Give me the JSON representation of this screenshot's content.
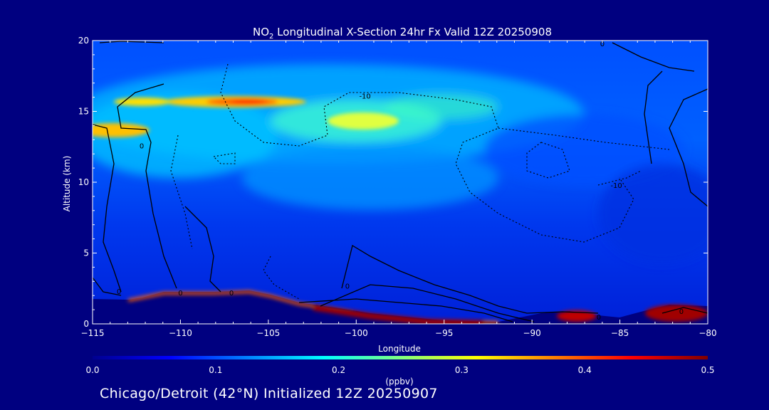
{
  "chart_data": {
    "type": "heatmap",
    "title": {
      "species": "NO",
      "subscript": "2",
      "rest": " Longitudinal X-Section 24hr  Fx Valid 12Z 20250908"
    },
    "xlabel": "Longitude",
    "ylabel": "Altitude (km)",
    "xlim": [
      -115,
      -80
    ],
    "ylim": [
      0,
      20
    ],
    "x_ticks": [
      -115,
      -110,
      -105,
      -100,
      -95,
      -90,
      -85,
      -80
    ],
    "x_tick_labels": [
      "−115",
      "−110",
      "−105",
      "−100",
      "−95",
      "−90",
      "−85",
      "−80"
    ],
    "y_ticks": [
      0,
      5,
      10,
      15,
      20
    ],
    "y_tick_labels": [
      "0",
      "5",
      "10",
      "15",
      "20"
    ],
    "colorbar": {
      "label": "(ppbv)",
      "range": [
        0.0,
        0.5
      ],
      "ticks": [
        0.0,
        0.1,
        0.2,
        0.3,
        0.4,
        0.5
      ],
      "tick_labels": [
        "0.0",
        "0.1",
        "0.2",
        "0.3",
        "0.4",
        "0.5"
      ],
      "colors": [
        "#00008f",
        "#0000ff",
        "#0080ff",
        "#00ffff",
        "#80ff80",
        "#ffff00",
        "#ff8000",
        "#ff0000",
        "#800000"
      ]
    },
    "contour_labels": [
      {
        "text": "-10",
        "x": -99.5,
        "y": 16.1
      },
      {
        "text": "-10",
        "x": -85.2,
        "y": 9.8
      },
      {
        "text": "0",
        "x": -112.2,
        "y": 12.6
      },
      {
        "text": "0",
        "x": -86.0,
        "y": 19.8
      },
      {
        "text": "0",
        "x": -113.5,
        "y": 2.3
      },
      {
        "text": "0",
        "x": -110.0,
        "y": 2.2
      },
      {
        "text": "0",
        "x": -107.1,
        "y": 2.2
      },
      {
        "text": "0",
        "x": -100.5,
        "y": 2.7
      },
      {
        "text": "0",
        "x": -86.2,
        "y": 0.5
      },
      {
        "text": "0",
        "x": -81.5,
        "y": 0.9
      }
    ],
    "no2_features": [
      {
        "lon": -107,
        "alt": 15.7,
        "value": 0.45
      },
      {
        "lon": -113,
        "alt": 13.8,
        "value": 0.33
      },
      {
        "lon": -99,
        "alt": 14.3,
        "value": 0.3
      },
      {
        "lon": -111,
        "alt": 15.7,
        "value": 0.3
      },
      {
        "lon": -95,
        "alt": 15.4,
        "value": 0.25
      },
      {
        "lon": -97,
        "alt": 9.5,
        "value": 0.2
      },
      {
        "lon": -100,
        "alt": 0.8,
        "value": 0.48
      },
      {
        "lon": -87.5,
        "alt": 0.6,
        "value": 0.45
      },
      {
        "lon": -82,
        "alt": 0.8,
        "value": 0.48
      }
    ],
    "grid": false
  },
  "footer": "Chicago/Detroit (42°N) Initialized 12Z 20250907"
}
